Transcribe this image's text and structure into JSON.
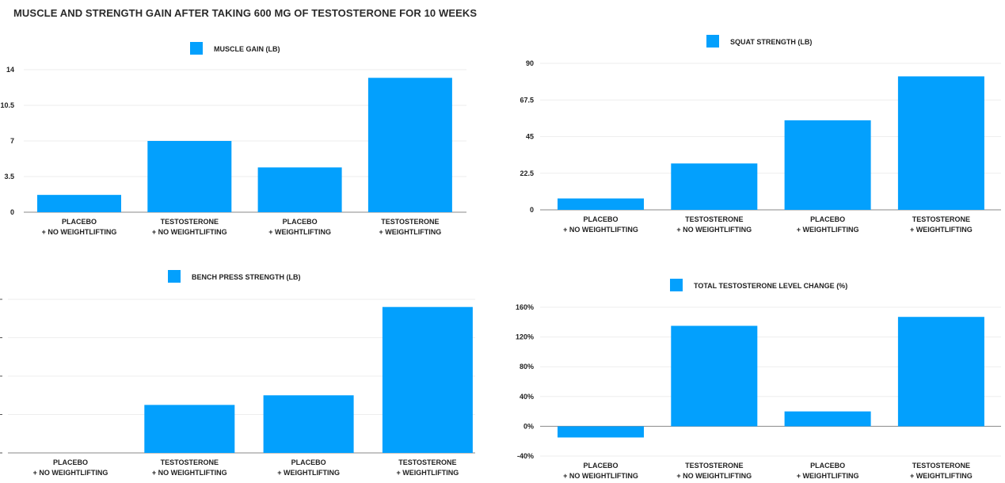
{
  "title": "MUSCLE AND STRENGTH GAIN AFTER TAKING 600 MG OF TESTOSTERONE FOR 10 WEEKS",
  "colors": {
    "bar": "#03a0fd",
    "grid": "#eeeeee",
    "axis": "#888888",
    "text": "#222222"
  },
  "chart_data": [
    {
      "type": "bar",
      "title": "",
      "series": [
        {
          "name": "MUSCLE GAIN (LB)",
          "values": [
            1.7,
            7.0,
            4.4,
            13.2
          ]
        }
      ],
      "categories": [
        [
          "PLACEBO",
          "+ NO WEIGHTLIFTING"
        ],
        [
          "TESTOSTERONE",
          "+ NO WEIGHTLIFTING"
        ],
        [
          "PLACEBO",
          "+ WEIGHTLIFTING"
        ],
        [
          "TESTOSTERONE",
          "+ WEIGHTLIFTING"
        ]
      ],
      "ylim": [
        0,
        14
      ],
      "yticks": [
        "0",
        "3.5",
        "7",
        "10.5",
        "14"
      ],
      "ytick_values": [
        0,
        3.5,
        7,
        10.5,
        14
      ],
      "grid": true,
      "legend": "top-center"
    },
    {
      "type": "bar",
      "title": "",
      "series": [
        {
          "name": "SQUAT STRENGTH (LB)",
          "values": [
            7,
            28.5,
            55,
            82
          ]
        }
      ],
      "categories": [
        [
          "PLACEBO",
          "+ NO WEIGHTLIFTING"
        ],
        [
          "TESTOSTERONE",
          "+ NO WEIGHTLIFTING"
        ],
        [
          "PLACEBO",
          "+ WEIGHTLIFTING"
        ],
        [
          "TESTOSTERONE",
          "+ WEIGHTLIFTING"
        ]
      ],
      "ylim": [
        0,
        90
      ],
      "yticks": [
        "0",
        "22.5",
        "45",
        "67.5",
        "90"
      ],
      "ytick_values": [
        0,
        22.5,
        45,
        67.5,
        90
      ],
      "grid": true,
      "legend": "top-center"
    },
    {
      "type": "bar",
      "title": "",
      "series": [
        {
          "name": "BENCH PRESS STRENGTH (LB)",
          "values": [
            0,
            12.5,
            15,
            38
          ]
        }
      ],
      "categories": [
        [
          "PLACEBO",
          "+ NO WEIGHTLIFTING"
        ],
        [
          "TESTOSTERONE",
          "+ NO WEIGHTLIFTING"
        ],
        [
          "PLACEBO",
          "+ WEIGHTLIFTING"
        ],
        [
          "TESTOSTERONE",
          "+ WEIGHTLIFTING"
        ]
      ],
      "ylim": [
        0,
        40
      ],
      "yticks": [],
      "ytick_values": [
        0,
        10,
        20,
        30,
        40
      ],
      "grid": true,
      "legend": "top-center"
    },
    {
      "type": "bar",
      "title": "",
      "series": [
        {
          "name": "TOTAL TESTOSTERONE LEVEL CHANGE (%)",
          "values": [
            -15,
            135,
            20,
            147
          ]
        }
      ],
      "categories": [
        [
          "PLACEBO",
          "+ NO WEIGHTLIFTING"
        ],
        [
          "TESTOSTERONE",
          "+ NO WEIGHTLIFTING"
        ],
        [
          "PLACEBO",
          "+ WEIGHTLIFTING"
        ],
        [
          "TESTOSTERONE",
          "+ WEIGHTLIFTING"
        ]
      ],
      "ylim": [
        -40,
        160
      ],
      "yticks": [
        "-40%",
        "0%",
        "40%",
        "80%",
        "120%",
        "160%"
      ],
      "ytick_values": [
        -40,
        0,
        40,
        80,
        120,
        160
      ],
      "grid": true,
      "legend": "top-center"
    }
  ]
}
